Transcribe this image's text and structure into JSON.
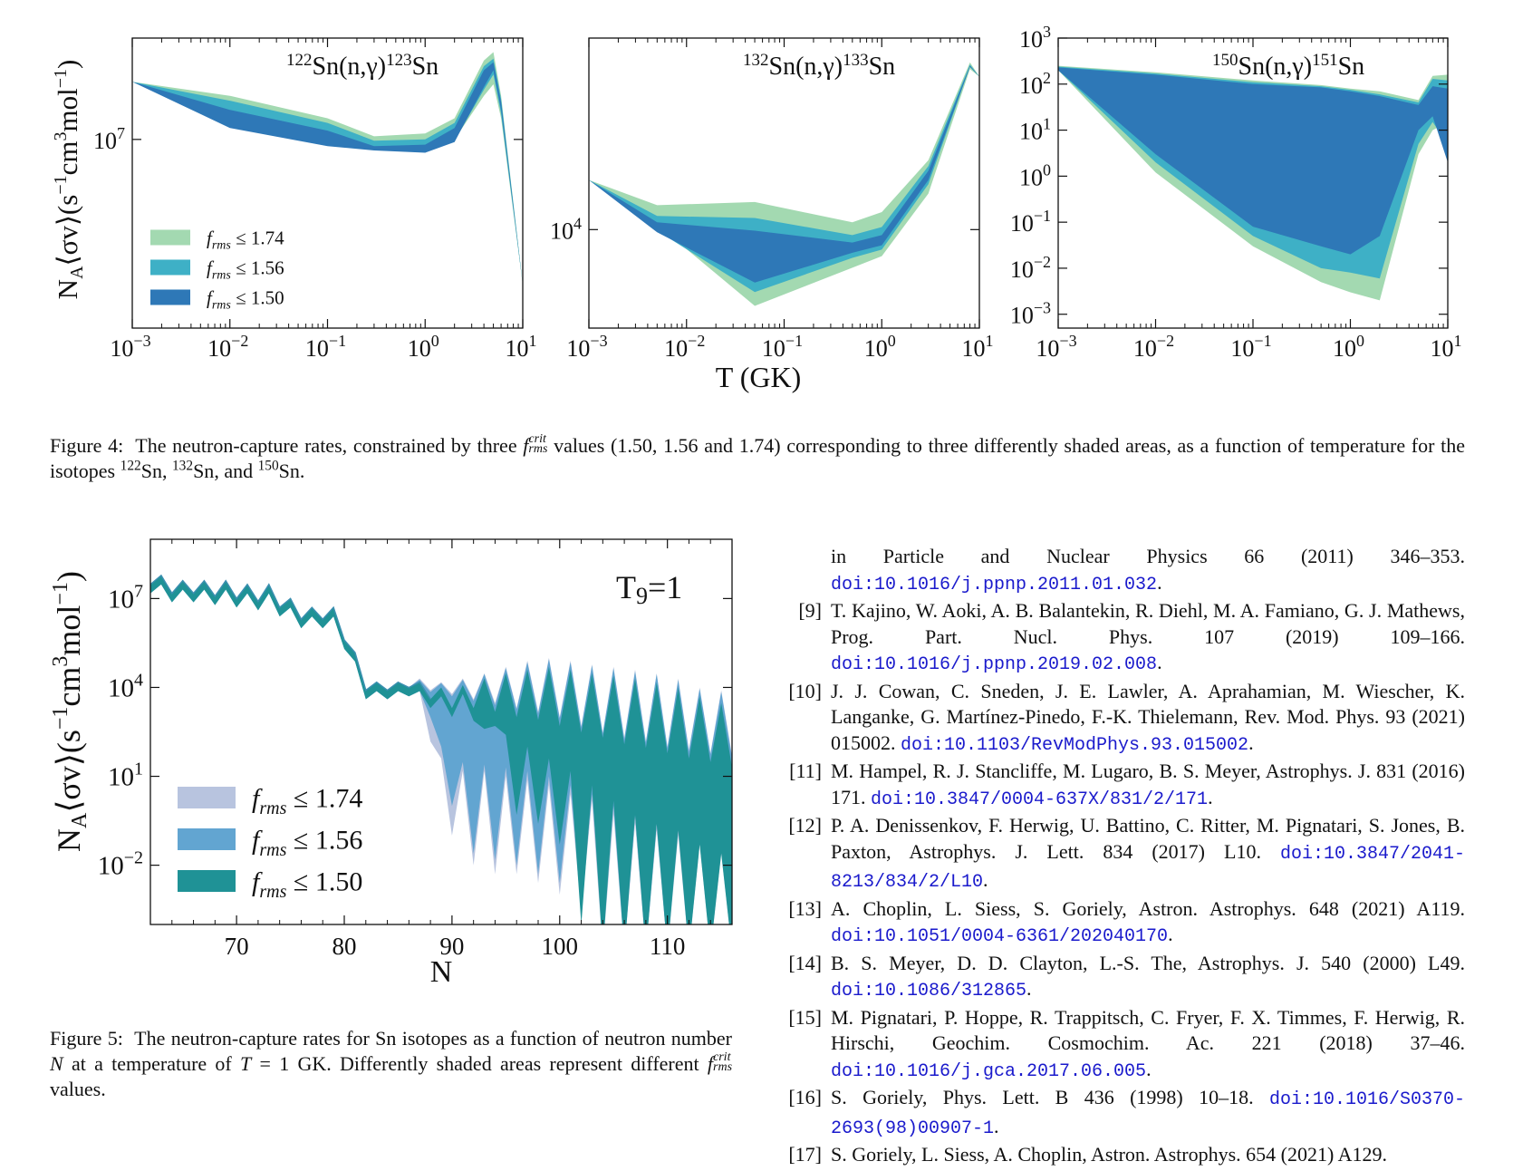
{
  "figure4": {
    "colors": {
      "band_174": "#a3d9b1",
      "band_156": "#3eb0c6",
      "band_150": "#2e78b7"
    },
    "legend": [
      {
        "f": "f",
        "sub": "rms",
        "rel": "≤",
        "val": "1.74",
        "color": "#a3d9b1"
      },
      {
        "f": "f",
        "sub": "rms",
        "rel": "≤",
        "val": "1.56",
        "color": "#3eb0c6"
      },
      {
        "f": "f",
        "sub": "rms",
        "rel": "≤",
        "val": "1.50",
        "color": "#2e78b7"
      }
    ],
    "ylabel": {
      "main": "N",
      "sub": "A",
      "mid": "⟨σv⟩(s",
      "sup1": "−1",
      "cm": "cm",
      "sup2": "3",
      "tail": "mol",
      "sup3": "−1",
      "close": ")"
    },
    "xlabel": "T (GK)",
    "xticks": [
      "10",
      "10",
      "10",
      "10",
      "10"
    ],
    "xtick_exps": [
      "−3",
      "−2",
      "−1",
      "0",
      "1"
    ],
    "chart_data": [
      {
        "type": "area",
        "title": {
          "pre": "122",
          "mid": "Sn(n,γ)",
          "post": "123",
          "end": "Sn"
        },
        "x_log": true,
        "xlim": [
          0.001,
          10
        ],
        "yticks": [
          {
            "base": "10",
            "exp": "7"
          }
        ],
        "T": [
          0.001,
          0.01,
          0.1,
          0.3,
          1,
          2,
          4,
          5,
          6,
          10
        ],
        "series": [
          {
            "name": "f_rms ≤ 1.74",
            "upper": [
              25000000.0,
              20000000.0,
              14000000.0,
              10500000.0,
              11000000.0,
              14000000.0,
              35000000.0,
              40000000.0,
              20000000.0,
              1000000.0
            ],
            "lower": [
              25000000.0,
              15000000.0,
              10000000.0,
              9000000.0,
              8500000.0,
              10000000.0,
              20000000.0,
              24000000.0,
              14000000.0,
              1000000.0
            ]
          },
          {
            "name": "f_rms ≤ 1.56",
            "upper": [
              25000000.0,
              18500000.0,
              13000000.0,
              9800000.0,
              10000000.0,
              13000000.0,
              32000000.0,
              36000000.0,
              19000000.0,
              1000000.0
            ],
            "lower": [
              25000000.0,
              13500000.0,
              9500000.0,
              8600000.0,
              8300000.0,
              9800000.0,
              22000000.0,
              28000000.0,
              15000000.0,
              1000000.0
            ]
          },
          {
            "name": "f_rms ≤ 1.50",
            "upper": [
              25000000.0,
              16000000.0,
              11500000.0,
              9000000.0,
              9200000.0,
              12000000.0,
              30000000.0,
              34000000.0,
              18000000.0,
              1000000.0
            ],
            "lower": [
              25000000.0,
              12000000.0,
              9000000.0,
              8400000.0,
              8100000.0,
              9600000.0,
              23000000.0,
              30000000.0,
              16000000.0,
              1000000.0
            ]
          }
        ]
      },
      {
        "type": "area",
        "title": {
          "pre": "132",
          "mid": "Sn(n,γ)",
          "post": "133",
          "end": "Sn"
        },
        "x_log": true,
        "xlim": [
          0.001,
          10
        ],
        "yticks": [
          {
            "base": "10",
            "exp": "4"
          }
        ],
        "T": [
          0.001,
          0.005,
          0.05,
          0.5,
          1,
          3,
          8,
          10
        ],
        "series": [
          {
            "name": "f_rms ≤ 1.74",
            "upper": [
              26000.0,
              16000.0,
              17000.0,
              11500.0,
              14000.0,
              38000.0,
              250000.0,
              190000.0
            ],
            "lower": [
              26000.0,
              11000.0,
              2300.0,
              4800.0,
              6000.0,
              20000.0,
              220000.0,
              190000.0
            ]
          },
          {
            "name": "f_rms ≤ 1.56",
            "upper": [
              26000.0,
              13000.0,
              12500.0,
              9000.0,
              10500.0,
              34000.0,
              240000.0,
              190000.0
            ],
            "lower": [
              26000.0,
              9800.0,
              3000.0,
              5800.0,
              6800.0,
              24000.0,
              230000.0,
              190000.0
            ]
          },
          {
            "name": "f_rms ≤ 1.50",
            "upper": [
              26000.0,
              11500.0,
              9800.0,
              7800.0,
              9000.0,
              31000.0,
              235000.0,
              190000.0
            ],
            "lower": [
              26000.0,
              9500.0,
              3600.0,
              6400.0,
              7400.0,
              26000.0,
              230000.0,
              190000.0
            ]
          }
        ]
      },
      {
        "type": "area",
        "title": {
          "pre": "150",
          "mid": "Sn(n,γ)",
          "post": "151",
          "end": "Sn"
        },
        "x_log": true,
        "xlim": [
          0.001,
          10
        ],
        "ylim": [
          0.0005,
          1000
        ],
        "yticks": [
          {
            "base": "10",
            "exp": "3"
          },
          {
            "base": "10",
            "exp": "2"
          },
          {
            "base": "10",
            "exp": "1"
          },
          {
            "base": "10",
            "exp": "0"
          },
          {
            "base": "10",
            "exp": "−1"
          },
          {
            "base": "10",
            "exp": "−2"
          },
          {
            "base": "10",
            "exp": "−3"
          }
        ],
        "T": [
          0.001,
          0.01,
          0.1,
          0.5,
          1,
          2,
          5,
          7,
          10
        ],
        "series": [
          {
            "name": "f_rms ≤ 1.74",
            "upper": [
              250,
              180,
              120,
              95,
              80,
              70,
              45,
              150,
              160
            ],
            "lower": [
              200,
              1.2,
              0.03,
              0.005,
              0.003,
              0.002,
              3,
              10,
              15
            ]
          },
          {
            "name": "f_rms ≤ 1.56",
            "upper": [
              240,
              170,
              110,
              90,
              75,
              60,
              40,
              130,
              120
            ],
            "lower": [
              200,
              2.0,
              0.05,
              0.01,
              0.008,
              0.006,
              5,
              15,
              5
            ]
          },
          {
            "name": "f_rms ≤ 1.50",
            "upper": [
              230,
              160,
              100,
              85,
              70,
              55,
              35,
              90,
              80
            ],
            "lower": [
              200,
              3.0,
              0.08,
              0.03,
              0.02,
              0.05,
              10,
              20,
              2
            ]
          }
        ]
      }
    ]
  },
  "caption4": {
    "label": "Figure 4:",
    "text1": "The neutron-capture rates, constrained by three",
    "f": "f",
    "fsub": "rms",
    "fsup": "crit",
    "text2": "values (1.50, 1.56 and 1.74) corresponding to three differently shaded areas, as a function of temperature for the isotopes",
    "iso1": "122",
    "iso2": "132",
    "iso3": "150",
    "sn": "Sn",
    "sep1": ",",
    "sep2": ", and",
    "end": "."
  },
  "figure5": {
    "annotation": {
      "T": "T",
      "sub": "9",
      "rest": "=1"
    },
    "xlabel": "N",
    "legend": [
      {
        "f": "f",
        "sub": "rms",
        "rel": "≤",
        "val": "1.74",
        "color": "#b8c4df"
      },
      {
        "f": "f",
        "sub": "rms",
        "rel": "≤",
        "val": "1.56",
        "color": "#62a5d1"
      },
      {
        "f": "f",
        "sub": "rms",
        "rel": "≤",
        "val": "1.50",
        "color": "#1f9296"
      }
    ],
    "chart_data": {
      "type": "area",
      "xlabel": "N",
      "xlim": [
        62,
        116
      ],
      "x_ticks": [
        "70",
        "80",
        "90",
        "100",
        "110"
      ],
      "y_log": true,
      "ylim": [
        0.0001,
        1000000000.0
      ],
      "yticks": [
        {
          "base": "10",
          "exp": "7"
        },
        {
          "base": "10",
          "exp": "4"
        },
        {
          "base": "10",
          "exp": "1"
        },
        {
          "base": "10",
          "exp": "−2"
        }
      ],
      "N": [
        62,
        63,
        64,
        65,
        66,
        67,
        68,
        69,
        70,
        71,
        72,
        73,
        74,
        75,
        76,
        77,
        78,
        79,
        80,
        81,
        82,
        83,
        84,
        85,
        86,
        87,
        88,
        89,
        90,
        91,
        92,
        93,
        94,
        95,
        96,
        97,
        98,
        99,
        100,
        101,
        102,
        103,
        104,
        105,
        106,
        107,
        108,
        109,
        110,
        111,
        112,
        113,
        114,
        115,
        116
      ],
      "series": [
        {
          "name": "f_rms ≤ 1.74",
          "upper": [
            30000000.0,
            60000000.0,
            15000000.0,
            40000000.0,
            15000000.0,
            40000000.0,
            12000000.0,
            40000000.0,
            10000000.0,
            30000000.0,
            8000000.0,
            30000000.0,
            5000000.0,
            10000000.0,
            2000000.0,
            5000000.0,
            2000000.0,
            5000000.0,
            400000.0,
            150000.0,
            8000.0,
            15000.0,
            8000.0,
            15000.0,
            10000.0,
            20000.0,
            8000.0,
            15000.0,
            6000.0,
            20000.0,
            4000.0,
            30000.0,
            3000.0,
            50000.0,
            2000.0,
            80000.0,
            1500.0,
            100000.0,
            1000.0,
            80000.0,
            500.0,
            60000.0,
            300.0,
            50000.0,
            200.0,
            40000.0,
            150.0,
            30000.0,
            100.0,
            20000.0,
            80,
            10000.0,
            60,
            8000.0,
            50
          ],
          "lower": [
            30000000.0,
            60000000.0,
            15000000.0,
            40000000.0,
            15000000.0,
            40000000.0,
            12000000.0,
            40000000.0,
            10000000.0,
            30000000.0,
            8000000.0,
            30000000.0,
            5000000.0,
            10000000.0,
            2000000.0,
            5000000.0,
            2000000.0,
            5000000.0,
            400000.0,
            150000.0,
            8000.0,
            15000.0,
            8000.0,
            15000.0,
            10000.0,
            15000.0,
            300.0,
            80,
            0.2,
            30,
            0.02,
            30,
            0.01,
            20,
            0.01,
            15,
            0.005,
            10,
            0.002,
            5,
            0.0005,
            3,
            0.0001,
            1,
            0.0001,
            0.5,
            0.0001,
            0.3,
            0.0001,
            0.2,
            0.0001,
            0.1,
            0.0001,
            0.05,
            0.0001
          ]
        },
        {
          "name": "f_rms ≤ 1.56",
          "upper": [
            30000000.0,
            60000000.0,
            15000000.0,
            40000000.0,
            15000000.0,
            40000000.0,
            12000000.0,
            40000000.0,
            10000000.0,
            30000000.0,
            8000000.0,
            30000000.0,
            5000000.0,
            10000000.0,
            2000000.0,
            5000000.0,
            2000000.0,
            5000000.0,
            400000.0,
            150000.0,
            8000.0,
            15000.0,
            8000.0,
            15000.0,
            10000.0,
            18000.0,
            7000.0,
            14000.0,
            5000.0,
            18000.0,
            3500.0,
            28000.0,
            2500.0,
            45000.0,
            1800.0,
            70000.0,
            1300.0,
            90000.0,
            900.0,
            70000.0,
            450.0,
            55000.0,
            280.0,
            45000.0,
            180.0,
            35000.0,
            140.0,
            28000.0,
            90,
            18000.0,
            70,
            9000.0,
            55,
            7000.0,
            45
          ],
          "lower": [
            30000000.0,
            60000000.0,
            15000000.0,
            40000000.0,
            15000000.0,
            40000000.0,
            12000000.0,
            40000000.0,
            10000000.0,
            30000000.0,
            8000000.0,
            30000000.0,
            5000000.0,
            10000000.0,
            2000000.0,
            5000000.0,
            2000000.0,
            5000000.0,
            400000.0,
            150000.0,
            8000.0,
            15000.0,
            8000.0,
            15000.0,
            10000.0,
            15000.0,
            2000.0,
            200.0,
            2,
            60,
            0.05,
            50,
            0.03,
            40,
            0.02,
            30,
            0.01,
            20,
            0.005,
            10,
            0.001,
            5,
            0.0002,
            2,
            0.0001,
            1,
            0.0001,
            0.5,
            0.0001,
            0.4,
            0.0001,
            0.2,
            0.0001,
            0.1,
            0.0001
          ]
        },
        {
          "name": "f_rms ≤ 1.50",
          "upper": [
            30000000.0,
            60000000.0,
            15000000.0,
            40000000.0,
            15000000.0,
            40000000.0,
            12000000.0,
            40000000.0,
            10000000.0,
            30000000.0,
            8000000.0,
            30000000.0,
            5000000.0,
            10000000.0,
            2000000.0,
            5000000.0,
            2000000.0,
            5000000.0,
            400000.0,
            150000.0,
            8000.0,
            15000.0,
            8000.0,
            15000.0,
            10000.0,
            15000.0,
            4000.0,
            10000.0,
            2000.0,
            12000.0,
            2000.0,
            20000.0,
            1500.0,
            30000.0,
            1000.0,
            40000.0,
            800.0,
            50000.0,
            500.0,
            40000.0,
            300.0,
            30000.0,
            200.0,
            25000.0,
            120.0,
            20000.0,
            90,
            15000.0,
            60,
            10000.0,
            40,
            5000.0,
            30,
            3000.0,
            20
          ],
          "lower": [
            30000000.0,
            60000000.0,
            15000000.0,
            40000000.0,
            15000000.0,
            40000000.0,
            12000000.0,
            40000000.0,
            10000000.0,
            30000000.0,
            8000000.0,
            30000000.0,
            5000000.0,
            10000000.0,
            2000000.0,
            5000000.0,
            2000000.0,
            5000000.0,
            400000.0,
            150000.0,
            8000.0,
            15000.0,
            8000.0,
            15000.0,
            10000.0,
            15000.0,
            4000.0,
            10000.0,
            2000.0,
            12000.0,
            1500.0,
            800.0,
            1000.0,
            500.0,
            1,
            200.0,
            0.5,
            80,
            0.1,
            30,
            0.0002,
            10,
            0.0001,
            3,
            0.0001,
            1,
            0.0001,
            0.5,
            0.0001,
            0.3,
            0.0001,
            0.1,
            0.0001,
            0.05,
            0.0001
          ]
        }
      ]
    }
  },
  "caption5": {
    "label": "Figure 5:",
    "text1": "The neutron-capture rates for Sn isotopes as a function of neutron number",
    "N": "N",
    "text2": "at a temperature of",
    "Teq": "T",
    "eq": "= 1 GK. Differently shaded areas represent different",
    "f": "f",
    "fsub": "rms",
    "fsup": "crit",
    "text3": "values."
  },
  "references": [
    {
      "num": "",
      "text": "in Particle and Nuclear Physics 66 (2011) 346–353.",
      "doi": "doi:10.1016/j.ppnp.2011.01.032",
      "end": "."
    },
    {
      "num": "[9]",
      "text": "T. Kajino, W. Aoki, A. B. Balantekin, R. Diehl, M. A. Famiano, G. J. Mathews, Prog. Part. Nucl. Phys. 107 (2019) 109–166.",
      "doi": "doi:10.1016/j.ppnp.2019.02.008",
      "end": "."
    },
    {
      "num": "[10]",
      "text": "J. J. Cowan, C. Sneden, J. E. Lawler, A. Aprahamian, M. Wiescher, K. Langanke, G. Martínez-Pinedo, F.-K. Thielemann, Rev. Mod. Phys. 93 (2021) 015002.",
      "doi": "doi:10.1103/RevModPhys.93.015002",
      "end": "."
    },
    {
      "num": "[11]",
      "text": "M. Hampel, R. J. Stancliffe, M. Lugaro, B. S. Meyer, Astrophys. J. 831 (2016) 171.",
      "doi": "doi:10.3847/0004-637X/831/2/171",
      "end": "."
    },
    {
      "num": "[12]",
      "text": "P. A. Denissenkov, F. Herwig, U. Battino, C. Ritter, M. Pignatari, S. Jones, B. Paxton, Astrophys. J. Lett. 834 (2017) L10.",
      "doi": "doi:10.3847/2041-8213/834/2/L10",
      "end": "."
    },
    {
      "num": "[13]",
      "text": "A. Choplin, L. Siess, S. Goriely, Astron. Astrophys. 648 (2021) A119.",
      "doi": "doi:10.1051/0004-6361/202040170",
      "end": "."
    },
    {
      "num": "[14]",
      "text": "B. S. Meyer, D. D. Clayton, L.-S. The, Astrophys. J. 540 (2000) L49.",
      "doi": "doi:10.1086/312865",
      "end": "."
    },
    {
      "num": "[15]",
      "text": "M. Pignatari, P. Hoppe, R. Trappitsch, C. Fryer, F. X. Timmes, F. Herwig, R. Hirschi, Geochim. Cosmochim. Ac. 221 (2018) 37–46.",
      "doi": "doi:10.1016/j.gca.2017.06.005",
      "end": "."
    },
    {
      "num": "[16]",
      "text": "S. Goriely, Phys. Lett. B 436 (1998) 10–18.",
      "doi": "doi:10.1016/S0370-2693(98)00907-1",
      "end": "."
    },
    {
      "num": "[17]",
      "text": "S. Goriely, L. Siess, A. Choplin, Astron. Astrophys. 654 (2021) A129.",
      "doi": "",
      "end": ""
    }
  ]
}
